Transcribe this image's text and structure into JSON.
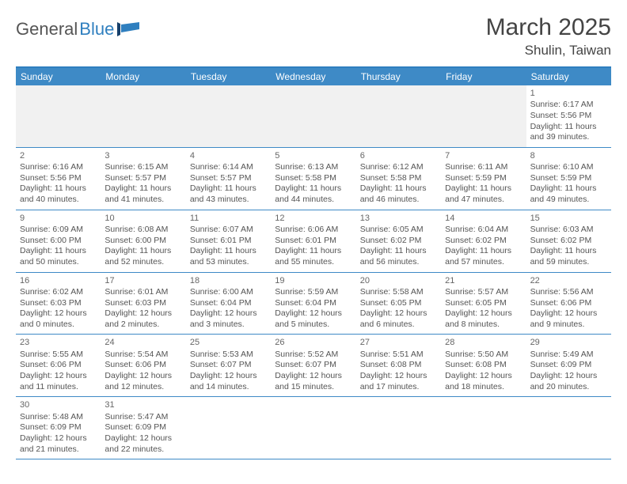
{
  "logo": {
    "text_main": "General",
    "text_blue": "Blue"
  },
  "title": {
    "month": "March 2025",
    "location": "Shulin, Taiwan"
  },
  "colors": {
    "header_blue": "#3e8ac6",
    "border_blue": "#2f7fbf",
    "text": "#555555",
    "bg_empty": "#f1f1f1"
  },
  "dow": [
    "Sunday",
    "Monday",
    "Tuesday",
    "Wednesday",
    "Thursday",
    "Friday",
    "Saturday"
  ],
  "weeks": [
    [
      null,
      null,
      null,
      null,
      null,
      null,
      {
        "n": "1",
        "sr": "Sunrise: 6:17 AM",
        "ss": "Sunset: 5:56 PM",
        "d1": "Daylight: 11 hours",
        "d2": "and 39 minutes."
      }
    ],
    [
      {
        "n": "2",
        "sr": "Sunrise: 6:16 AM",
        "ss": "Sunset: 5:56 PM",
        "d1": "Daylight: 11 hours",
        "d2": "and 40 minutes."
      },
      {
        "n": "3",
        "sr": "Sunrise: 6:15 AM",
        "ss": "Sunset: 5:57 PM",
        "d1": "Daylight: 11 hours",
        "d2": "and 41 minutes."
      },
      {
        "n": "4",
        "sr": "Sunrise: 6:14 AM",
        "ss": "Sunset: 5:57 PM",
        "d1": "Daylight: 11 hours",
        "d2": "and 43 minutes."
      },
      {
        "n": "5",
        "sr": "Sunrise: 6:13 AM",
        "ss": "Sunset: 5:58 PM",
        "d1": "Daylight: 11 hours",
        "d2": "and 44 minutes."
      },
      {
        "n": "6",
        "sr": "Sunrise: 6:12 AM",
        "ss": "Sunset: 5:58 PM",
        "d1": "Daylight: 11 hours",
        "d2": "and 46 minutes."
      },
      {
        "n": "7",
        "sr": "Sunrise: 6:11 AM",
        "ss": "Sunset: 5:59 PM",
        "d1": "Daylight: 11 hours",
        "d2": "and 47 minutes."
      },
      {
        "n": "8",
        "sr": "Sunrise: 6:10 AM",
        "ss": "Sunset: 5:59 PM",
        "d1": "Daylight: 11 hours",
        "d2": "and 49 minutes."
      }
    ],
    [
      {
        "n": "9",
        "sr": "Sunrise: 6:09 AM",
        "ss": "Sunset: 6:00 PM",
        "d1": "Daylight: 11 hours",
        "d2": "and 50 minutes."
      },
      {
        "n": "10",
        "sr": "Sunrise: 6:08 AM",
        "ss": "Sunset: 6:00 PM",
        "d1": "Daylight: 11 hours",
        "d2": "and 52 minutes."
      },
      {
        "n": "11",
        "sr": "Sunrise: 6:07 AM",
        "ss": "Sunset: 6:01 PM",
        "d1": "Daylight: 11 hours",
        "d2": "and 53 minutes."
      },
      {
        "n": "12",
        "sr": "Sunrise: 6:06 AM",
        "ss": "Sunset: 6:01 PM",
        "d1": "Daylight: 11 hours",
        "d2": "and 55 minutes."
      },
      {
        "n": "13",
        "sr": "Sunrise: 6:05 AM",
        "ss": "Sunset: 6:02 PM",
        "d1": "Daylight: 11 hours",
        "d2": "and 56 minutes."
      },
      {
        "n": "14",
        "sr": "Sunrise: 6:04 AM",
        "ss": "Sunset: 6:02 PM",
        "d1": "Daylight: 11 hours",
        "d2": "and 57 minutes."
      },
      {
        "n": "15",
        "sr": "Sunrise: 6:03 AM",
        "ss": "Sunset: 6:02 PM",
        "d1": "Daylight: 11 hours",
        "d2": "and 59 minutes."
      }
    ],
    [
      {
        "n": "16",
        "sr": "Sunrise: 6:02 AM",
        "ss": "Sunset: 6:03 PM",
        "d1": "Daylight: 12 hours",
        "d2": "and 0 minutes."
      },
      {
        "n": "17",
        "sr": "Sunrise: 6:01 AM",
        "ss": "Sunset: 6:03 PM",
        "d1": "Daylight: 12 hours",
        "d2": "and 2 minutes."
      },
      {
        "n": "18",
        "sr": "Sunrise: 6:00 AM",
        "ss": "Sunset: 6:04 PM",
        "d1": "Daylight: 12 hours",
        "d2": "and 3 minutes."
      },
      {
        "n": "19",
        "sr": "Sunrise: 5:59 AM",
        "ss": "Sunset: 6:04 PM",
        "d1": "Daylight: 12 hours",
        "d2": "and 5 minutes."
      },
      {
        "n": "20",
        "sr": "Sunrise: 5:58 AM",
        "ss": "Sunset: 6:05 PM",
        "d1": "Daylight: 12 hours",
        "d2": "and 6 minutes."
      },
      {
        "n": "21",
        "sr": "Sunrise: 5:57 AM",
        "ss": "Sunset: 6:05 PM",
        "d1": "Daylight: 12 hours",
        "d2": "and 8 minutes."
      },
      {
        "n": "22",
        "sr": "Sunrise: 5:56 AM",
        "ss": "Sunset: 6:06 PM",
        "d1": "Daylight: 12 hours",
        "d2": "and 9 minutes."
      }
    ],
    [
      {
        "n": "23",
        "sr": "Sunrise: 5:55 AM",
        "ss": "Sunset: 6:06 PM",
        "d1": "Daylight: 12 hours",
        "d2": "and 11 minutes."
      },
      {
        "n": "24",
        "sr": "Sunrise: 5:54 AM",
        "ss": "Sunset: 6:06 PM",
        "d1": "Daylight: 12 hours",
        "d2": "and 12 minutes."
      },
      {
        "n": "25",
        "sr": "Sunrise: 5:53 AM",
        "ss": "Sunset: 6:07 PM",
        "d1": "Daylight: 12 hours",
        "d2": "and 14 minutes."
      },
      {
        "n": "26",
        "sr": "Sunrise: 5:52 AM",
        "ss": "Sunset: 6:07 PM",
        "d1": "Daylight: 12 hours",
        "d2": "and 15 minutes."
      },
      {
        "n": "27",
        "sr": "Sunrise: 5:51 AM",
        "ss": "Sunset: 6:08 PM",
        "d1": "Daylight: 12 hours",
        "d2": "and 17 minutes."
      },
      {
        "n": "28",
        "sr": "Sunrise: 5:50 AM",
        "ss": "Sunset: 6:08 PM",
        "d1": "Daylight: 12 hours",
        "d2": "and 18 minutes."
      },
      {
        "n": "29",
        "sr": "Sunrise: 5:49 AM",
        "ss": "Sunset: 6:09 PM",
        "d1": "Daylight: 12 hours",
        "d2": "and 20 minutes."
      }
    ],
    [
      {
        "n": "30",
        "sr": "Sunrise: 5:48 AM",
        "ss": "Sunset: 6:09 PM",
        "d1": "Daylight: 12 hours",
        "d2": "and 21 minutes."
      },
      {
        "n": "31",
        "sr": "Sunrise: 5:47 AM",
        "ss": "Sunset: 6:09 PM",
        "d1": "Daylight: 12 hours",
        "d2": "and 22 minutes."
      },
      null,
      null,
      null,
      null,
      null
    ]
  ]
}
